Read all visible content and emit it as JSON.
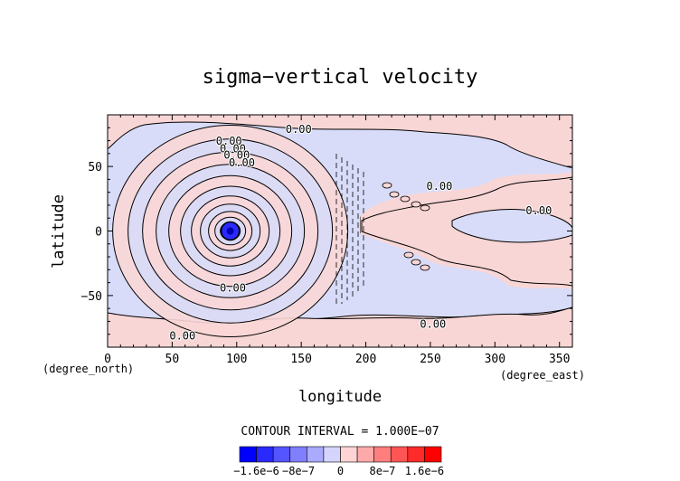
{
  "chart_data": {
    "type": "contour",
    "title": "sigma−vertical velocity",
    "xlabel": "longitude",
    "ylabel": "latitude",
    "x_unit": "(degree_east)",
    "y_unit": "(degree_north)",
    "xlim": [
      0,
      360
    ],
    "ylim": [
      -90,
      90
    ],
    "x_ticks": [
      0,
      50,
      100,
      150,
      200,
      250,
      300,
      350
    ],
    "y_ticks": [
      -50,
      0,
      50
    ],
    "contour_interval_text": "CONTOUR INTERVAL = 1.000E−07",
    "contour_label": "0.00",
    "contour_label_positions": [
      {
        "lon": 148,
        "lat": 76
      },
      {
        "lon": 94,
        "lat": 67
      },
      {
        "lon": 97,
        "lat": 61
      },
      {
        "lon": 100,
        "lat": 56
      },
      {
        "lon": 104,
        "lat": 50
      },
      {
        "lon": 257,
        "lat": 32
      },
      {
        "lon": 334,
        "lat": 13
      },
      {
        "lon": 97,
        "lat": -47
      },
      {
        "lon": 252,
        "lat": -75
      },
      {
        "lon": 58,
        "lat": -84
      }
    ],
    "center": {
      "lon": 95,
      "lat": 0
    },
    "colorbar": {
      "colors": [
        "#0000ff",
        "#2a2aff",
        "#5555ff",
        "#7f7fff",
        "#aaaaff",
        "#d4d4ff",
        "#ffd4d4",
        "#ffaaaa",
        "#ff7f7f",
        "#ff5555",
        "#ff2a2a",
        "#ff0000"
      ],
      "tick_labels": [
        "−1.6e−6",
        "−8e−7",
        "0",
        "8e−7",
        "1.6e−6"
      ],
      "tick_values": [
        -1.6e-06,
        -8e-07,
        0,
        8e-07,
        1.6e-06
      ]
    },
    "negative_color": "#d8dcf8",
    "positive_color": "#f9d6d6"
  }
}
